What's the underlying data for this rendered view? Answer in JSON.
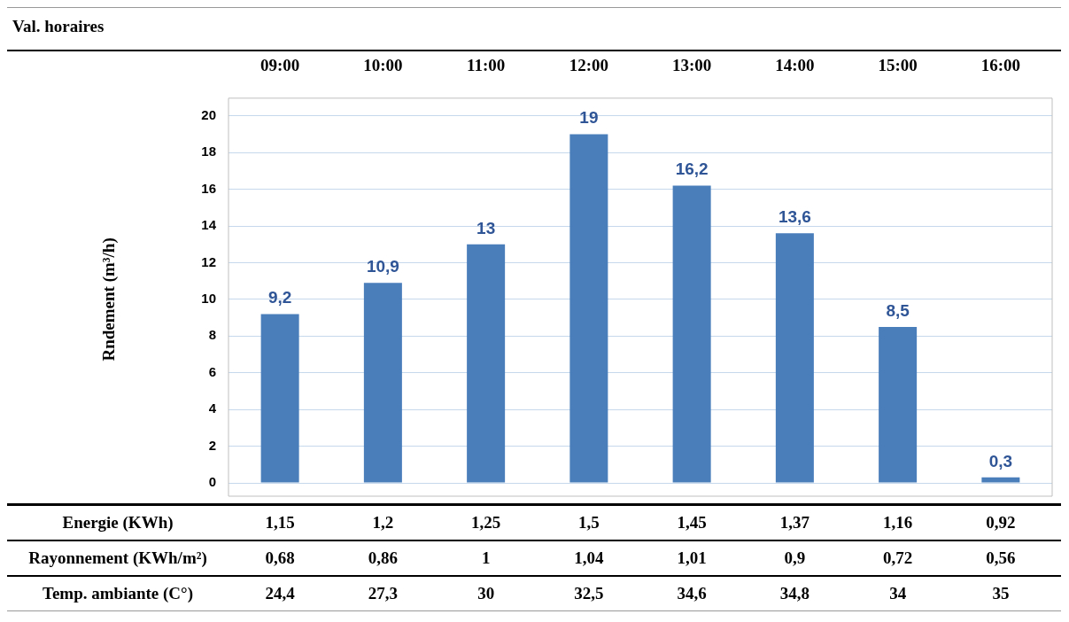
{
  "chart_data": {
    "type": "bar",
    "ylabel": "Rndement (m³/h)",
    "categories": [
      "09:00",
      "10:00",
      "11:00",
      "12:00",
      "13:00",
      "14:00",
      "15:00",
      "16:00"
    ],
    "values": [
      9.2,
      10.9,
      13,
      19,
      16.2,
      13.6,
      8.5,
      0.3
    ],
    "value_labels": [
      "9,2",
      "10,9",
      "13",
      "19",
      "16,2",
      "13,6",
      "8,5",
      "0,3"
    ],
    "color": "#4a7ebb",
    "ylim": [
      0,
      20
    ],
    "yticks": [
      0,
      2,
      4,
      6,
      8,
      10,
      12,
      14,
      16,
      18,
      20
    ],
    "grid": "y",
    "legend": false,
    "annotations": [
      "Val. horaires",
      "Energie (KWh)",
      "1,15",
      "1,2",
      "1,25",
      "1,5",
      "1,45",
      "1,37",
      "1,16",
      "0,92",
      "Rayonnement (KWh/m²)",
      "0,68",
      "0,86",
      "1",
      "1,04",
      "1,01",
      "0,9",
      "0,72",
      "0,56",
      "Temp. ambiante (C°)",
      "24,4",
      "27,3",
      "30",
      "32,5",
      "34,6",
      "34,8",
      "34",
      "35"
    ]
  }
}
